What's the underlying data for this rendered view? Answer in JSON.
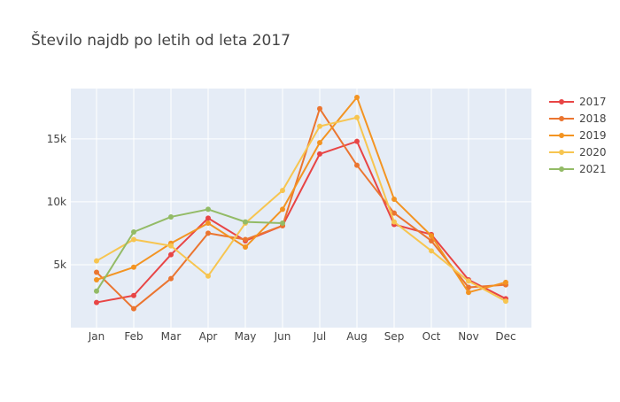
{
  "chart_data": {
    "type": "line",
    "title": "Število najdb po letih od leta 2017",
    "xlabel": "",
    "ylabel": "",
    "categories": [
      "Jan",
      "Feb",
      "Mar",
      "Apr",
      "May",
      "Jun",
      "Jul",
      "Aug",
      "Sep",
      "Oct",
      "Nov",
      "Dec"
    ],
    "ylim": [
      0,
      19000
    ],
    "yticks": [
      5000,
      10000,
      15000
    ],
    "ytick_labels": [
      "5k",
      "10k",
      "15k"
    ],
    "grid": true,
    "legend_position": "top-right",
    "series": [
      {
        "name": "2017",
        "color": "#e84545",
        "values": [
          2000,
          2550,
          5800,
          8700,
          6900,
          8100,
          13800,
          14800,
          8200,
          7400,
          3800,
          2300
        ]
      },
      {
        "name": "2018",
        "color": "#eb7530",
        "values": [
          4400,
          1500,
          3900,
          7500,
          7000,
          8100,
          17400,
          12900,
          9100,
          6900,
          3200,
          3400
        ]
      },
      {
        "name": "2019",
        "color": "#f39422",
        "values": [
          3800,
          4800,
          6700,
          8300,
          6400,
          9400,
          14700,
          18300,
          10200,
          7300,
          2800,
          3600
        ]
      },
      {
        "name": "2020",
        "color": "#f7c550",
        "values": [
          5300,
          7000,
          6500,
          4100,
          8300,
          10900,
          16000,
          16700,
          8400,
          6100,
          3700,
          2100
        ]
      },
      {
        "name": "2021",
        "color": "#93bb66",
        "values": [
          2900,
          7600,
          8800,
          9400,
          8400,
          8300,
          null,
          null,
          null,
          null,
          null,
          null
        ]
      }
    ]
  }
}
